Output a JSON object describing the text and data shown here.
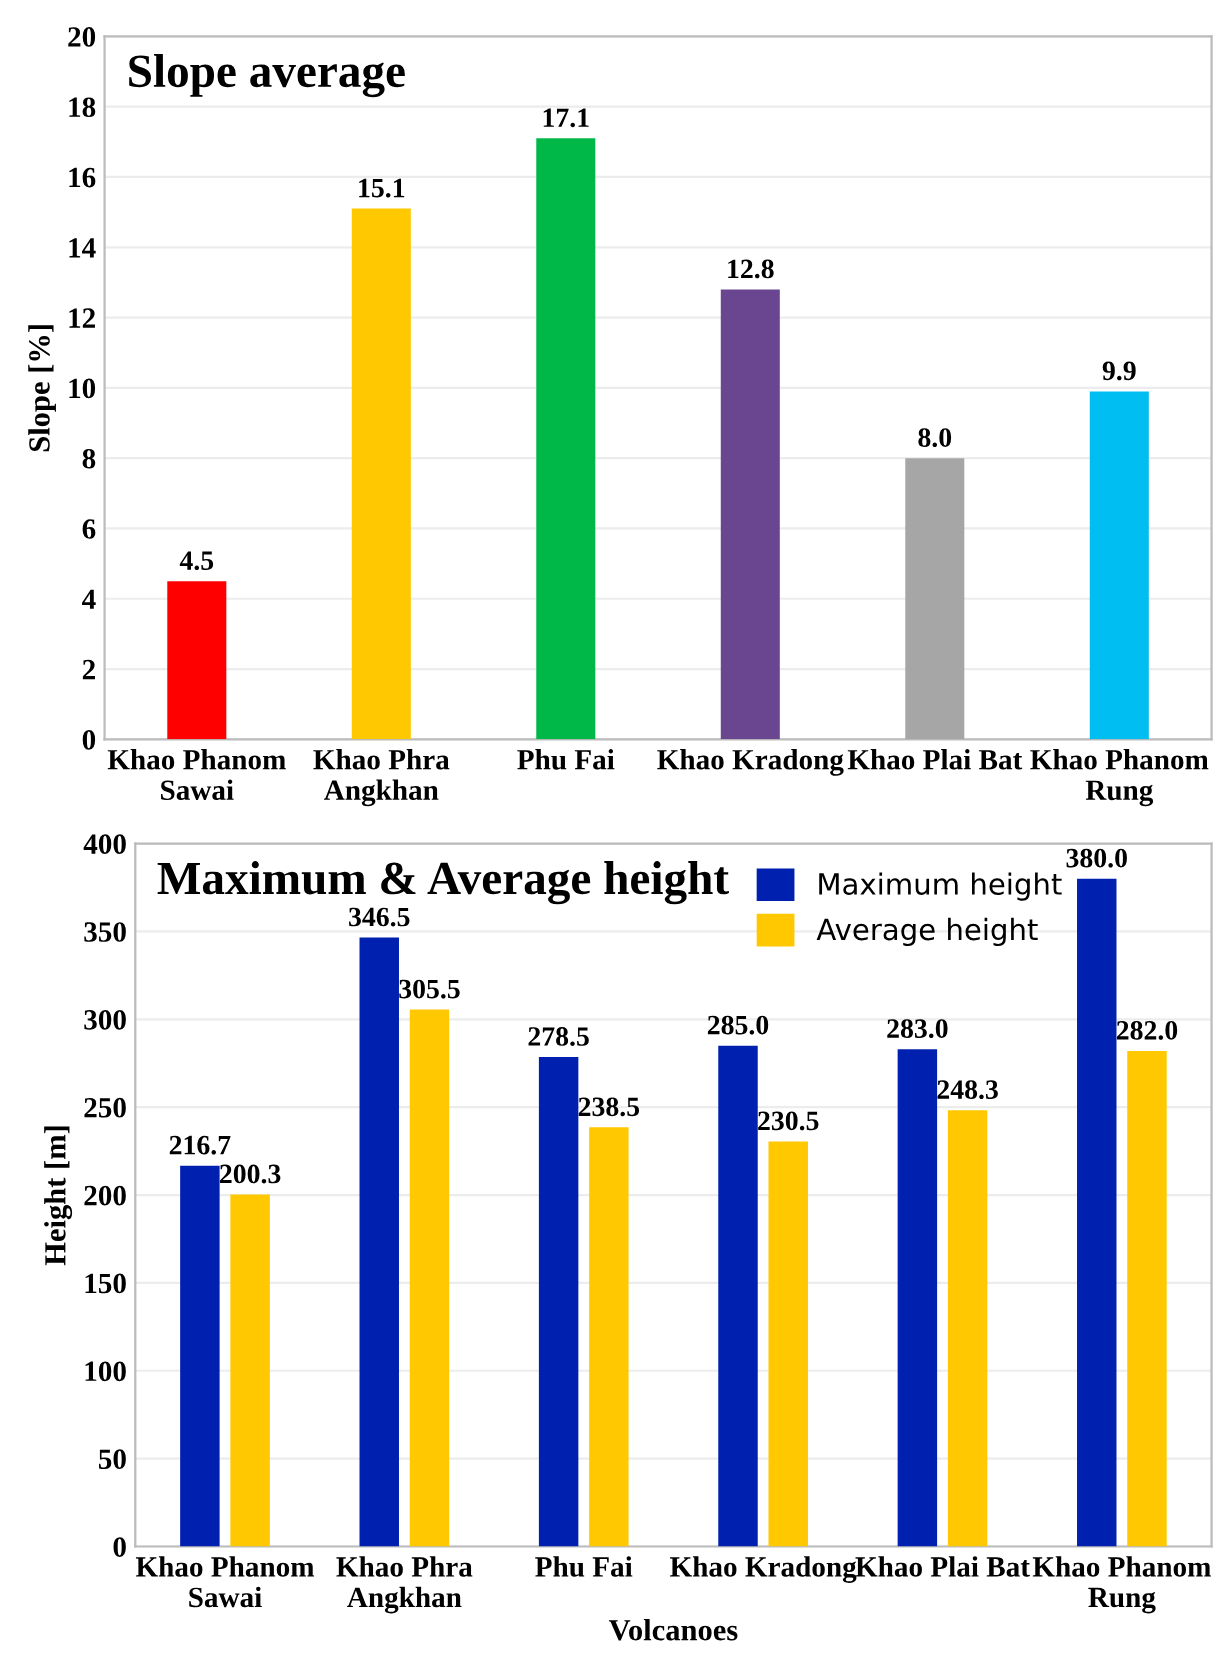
{
  "chart_data": [
    {
      "type": "bar",
      "title": "Slope average",
      "ylabel": "Slope [%]",
      "categories": [
        "Khao Phanom\nSawai",
        "Khao Phra\nAngkhan",
        "Phu Fai",
        "Khao Kradong",
        "Khao Plai Bat",
        "Khao Phanom\nRung"
      ],
      "values": [
        4.5,
        15.1,
        17.1,
        12.8,
        8.0,
        9.9
      ],
      "colors": [
        "#ff0000",
        "#ffc800",
        "#00b847",
        "#6a4691",
        "#a6a6a6",
        "#00bef2"
      ],
      "value_labels": [
        "4.5",
        "15.1",
        "17.1",
        "12.8",
        "8.0",
        "9.9"
      ],
      "ylim": [
        0,
        20
      ],
      "yticks": [
        0,
        2,
        4,
        6,
        8,
        10,
        12,
        14,
        16,
        18,
        20
      ],
      "grid": "y",
      "legend": false
    },
    {
      "type": "bar",
      "title": "Maximum & Average height",
      "ylabel": "Height [m]",
      "xlabel": "Volcanoes",
      "categories": [
        "Khao Phanom\nSawai",
        "Khao Phra\nAngkhan",
        "Phu Fai",
        "Khao Kradong",
        "Khao Plai Bat",
        "Khao Phanom\nRung"
      ],
      "series": [
        {
          "name": "Maximum height",
          "color": "#0020b0",
          "values": [
            216.7,
            346.5,
            278.5,
            285.0,
            283.0,
            380.0
          ],
          "value_labels": [
            "216.7",
            "346.5",
            "278.5",
            "285.0",
            "283.0",
            "380.0"
          ]
        },
        {
          "name": "Average height",
          "color": "#ffc800",
          "values": [
            200.3,
            305.5,
            238.5,
            230.5,
            248.3,
            282.0
          ],
          "value_labels": [
            "200.3",
            "305.5",
            "238.5",
            "230.5",
            "248.3",
            "282.0"
          ]
        }
      ],
      "ylim": [
        0,
        400
      ],
      "yticks": [
        0,
        50,
        100,
        150,
        200,
        250,
        300,
        350,
        400
      ],
      "grid": "y",
      "legend": "top right"
    }
  ]
}
